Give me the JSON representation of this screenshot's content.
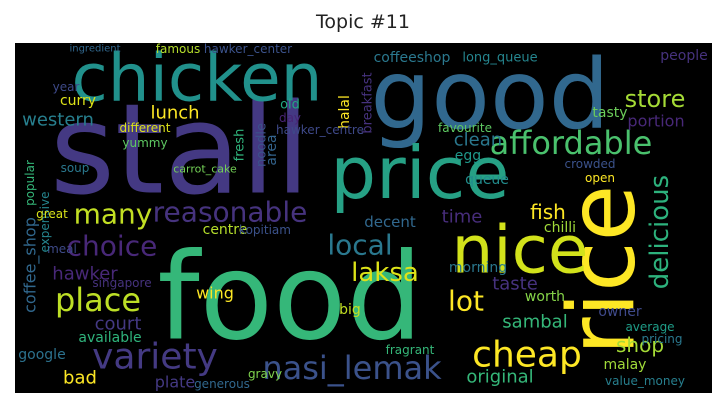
{
  "chart_data": {
    "type": "wordcloud",
    "title": "Topic #11",
    "categories": [
      "food",
      "good",
      "stall",
      "chicken",
      "rice",
      "price",
      "nice",
      "affordable",
      "many",
      "reasonable",
      "choice",
      "local",
      "laksa",
      "place",
      "variety",
      "nasi_lemak",
      "cheap",
      "delicious",
      "store",
      "portion",
      "tasty",
      "lunch",
      "western",
      "curry",
      "year",
      "coffeeshop",
      "long_queue",
      "hawker_center",
      "famous",
      "ingredient",
      "breakfast",
      "halal",
      "area",
      "old",
      "day",
      "noodle",
      "hawker_centre",
      "fresh",
      "egg",
      "clean",
      "queue",
      "fish",
      "chilli",
      "time",
      "decent",
      "favourite",
      "crowded",
      "taste",
      "lot",
      "worth",
      "sambal",
      "original",
      "shop",
      "owner",
      "average",
      "pricing",
      "malay",
      "value_money",
      "court",
      "hawker",
      "coffee_shop",
      "singapore",
      "wing",
      "centre",
      "kopitiam",
      "carrot_cake",
      "soup",
      "popular",
      "yummy",
      "different",
      "available",
      "meal",
      "expensive",
      "google",
      "bad",
      "plate",
      "generous",
      "gravy",
      "fragrant",
      "big",
      "people",
      "open",
      "great",
      "morning"
    ],
    "values": [
      120,
      96,
      125,
      66,
      92,
      72,
      66,
      32,
      28,
      28,
      28,
      28,
      26,
      32,
      36,
      32,
      36,
      26,
      24,
      16,
      14,
      18,
      18,
      14,
      12,
      14,
      13,
      12,
      12,
      10,
      13,
      14,
      14,
      13,
      12,
      13,
      12,
      13,
      14,
      18,
      14,
      20,
      14,
      18,
      15,
      12,
      12,
      18,
      28,
      14,
      18,
      18,
      20,
      14,
      12,
      12,
      14,
      12,
      18,
      18,
      16,
      12,
      16,
      14,
      12,
      11,
      12,
      12,
      12,
      12,
      14,
      12,
      12,
      14,
      18,
      16,
      12,
      12,
      12,
      14,
      14,
      12,
      12,
      14
    ],
    "colors": [
      "#35b779",
      "#31688e",
      "#443983",
      "#21918c",
      "#fde725",
      "#26a185",
      "#d2e21b",
      "#4ac16d",
      "#c2df23",
      "#46337e",
      "#482878",
      "#2a788e",
      "#dde318",
      "#bddf26",
      "#443a83",
      "#3b528b",
      "#fde725",
      "#2db27d",
      "#a5db36",
      "#482878",
      "#6ccd5a",
      "#fde725",
      "#277f8e",
      "#dde318",
      "#3e4a89",
      "#2a788e",
      "#25858e",
      "#3b528b",
      "#b5de2b",
      "#31688e",
      "#46327e",
      "#fde725",
      "#33638d",
      "#22a884",
      "#482475",
      "#3b528b",
      "#3e4989",
      "#2fb47c",
      "#1f988b",
      "#2a788e",
      "#228c8d",
      "#fde725",
      "#a0da39",
      "#472d7b",
      "#31688e",
      "#5ec962",
      "#3b528b",
      "#46327e",
      "#fde725",
      "#86d549",
      "#35b779",
      "#35b779",
      "#a5db36",
      "#3e4989",
      "#1f9e89",
      "#2a788e",
      "#a0da39",
      "#277f8e",
      "#443983",
      "#482878",
      "#31688e",
      "#46327e",
      "#fde725",
      "#b5de2b",
      "#3b528b",
      "#73d056",
      "#2a788e",
      "#35b779",
      "#5ec962",
      "#dde318",
      "#2fb47c",
      "#3e4a89",
      "#25858e",
      "#2c728e",
      "#fde725",
      "#443983",
      "#31688e",
      "#7fd34e",
      "#35b779",
      "#c2df23",
      "#46327e",
      "#fde725",
      "#d8e219",
      "#2a788e"
    ]
  }
}
